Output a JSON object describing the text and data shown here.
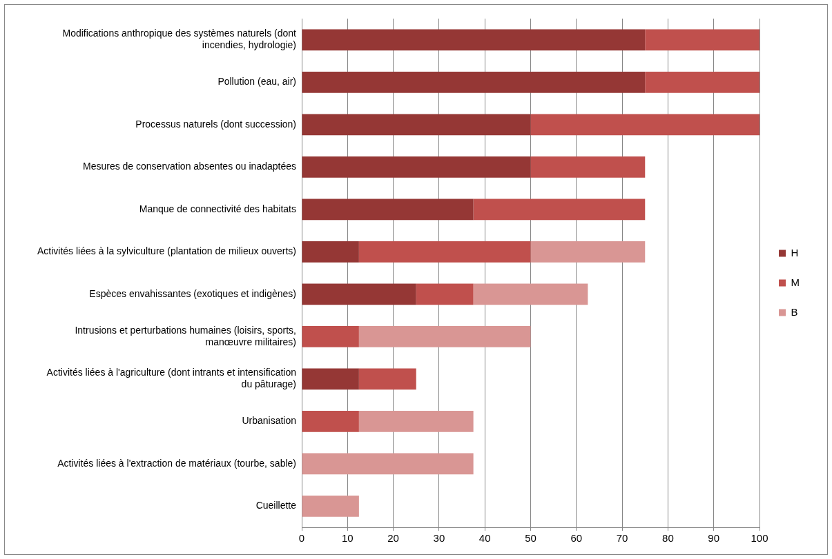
{
  "chart_data": {
    "type": "bar",
    "orientation": "horizontal",
    "stacked": true,
    "categories": [
      "Modifications anthropique des systèmes naturels (dont incendies, hydrologie)",
      "Pollution (eau, air)",
      "Processus naturels (dont succession)",
      "Mesures de conservation absentes ou inadaptées",
      "Manque de connectivité des habitats",
      "Activités liées à la sylviculture (plantation de milieux ouverts)",
      "Espèces envahissantes (exotiques et indigènes)",
      "Intrusions et perturbations humaines (loisirs, sports, manœuvre militaires)",
      "Activités liées à l'agriculture (dont intrants et intensification du pâturage)",
      "Urbanisation",
      "Activités liées à l'extraction de matériaux (tourbe, sable)",
      "Cueillette"
    ],
    "series": [
      {
        "name": "H",
        "color": "#953735",
        "values": [
          75,
          75,
          50,
          50,
          37.5,
          12.5,
          25,
          0,
          12.5,
          0,
          0,
          0
        ]
      },
      {
        "name": "M",
        "color": "#c0504d",
        "values": [
          25,
          25,
          50,
          25,
          37.5,
          37.5,
          12.5,
          12.5,
          12.5,
          12.5,
          0,
          0
        ]
      },
      {
        "name": "B",
        "color": "#d99694",
        "values": [
          0,
          0,
          0,
          0,
          0,
          25,
          25,
          37.5,
          0,
          25,
          37.5,
          12.5
        ]
      }
    ],
    "xlim": [
      0,
      100
    ],
    "xticks": [
      0,
      10,
      20,
      30,
      40,
      50,
      60,
      70,
      80,
      90,
      100
    ],
    "grid": "x",
    "legend": "right"
  }
}
